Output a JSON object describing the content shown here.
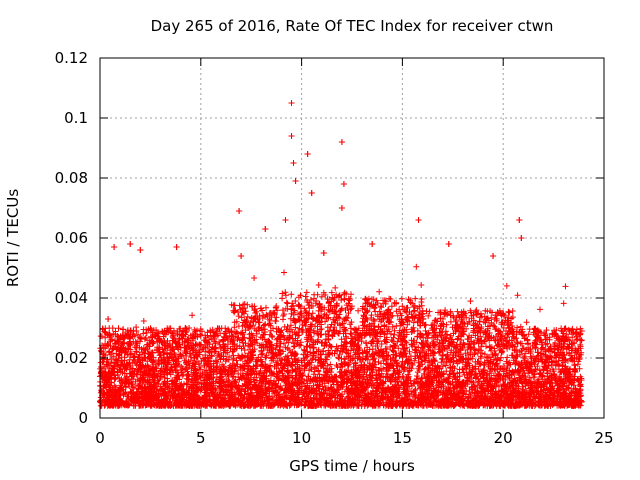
{
  "chart_data": {
    "type": "scatter",
    "title": "Day 265 of 2016, Rate Of TEC Index for receiver ctwn",
    "xlabel": "GPS time / hours",
    "ylabel": "ROTI / TECUs",
    "xlim": [
      0,
      25
    ],
    "ylim": [
      0,
      0.12
    ],
    "x_ticks": [
      0,
      5,
      10,
      15,
      20,
      25
    ],
    "x_tick_labels": [
      "0",
      "5",
      "10",
      "15",
      "20",
      "25"
    ],
    "y_ticks": [
      0,
      0.02,
      0.04,
      0.06,
      0.08,
      0.1,
      0.12
    ],
    "y_tick_labels": [
      "0",
      "0.02",
      "0.04",
      "0.06",
      "0.08",
      "0.1",
      "0.12"
    ],
    "grid": true,
    "marker": "+",
    "color": "#ff0000",
    "data_range_hours": [
      0,
      23.9
    ],
    "series": [
      {
        "name": "ROTI",
        "note": "dense band of points, mostly 0.005-0.035 TECU/s; representative peaks listed below",
        "x": [
          0.4,
          0.7,
          1.5,
          2.0,
          3.8,
          6.9,
          7.0,
          8.2,
          9.2,
          9.5,
          9.5,
          9.6,
          9.7,
          10.3,
          10.5,
          11.1,
          12.0,
          12.1,
          12.0,
          13.5,
          15.8,
          17.3,
          19.5,
          20.8,
          20.9
        ],
        "y": [
          0.033,
          0.057,
          0.058,
          0.056,
          0.057,
          0.069,
          0.054,
          0.063,
          0.066,
          0.105,
          0.094,
          0.085,
          0.079,
          0.088,
          0.075,
          0.055,
          0.092,
          0.078,
          0.07,
          0.058,
          0.066,
          0.058,
          0.054,
          0.066,
          0.06
        ]
      }
    ]
  }
}
